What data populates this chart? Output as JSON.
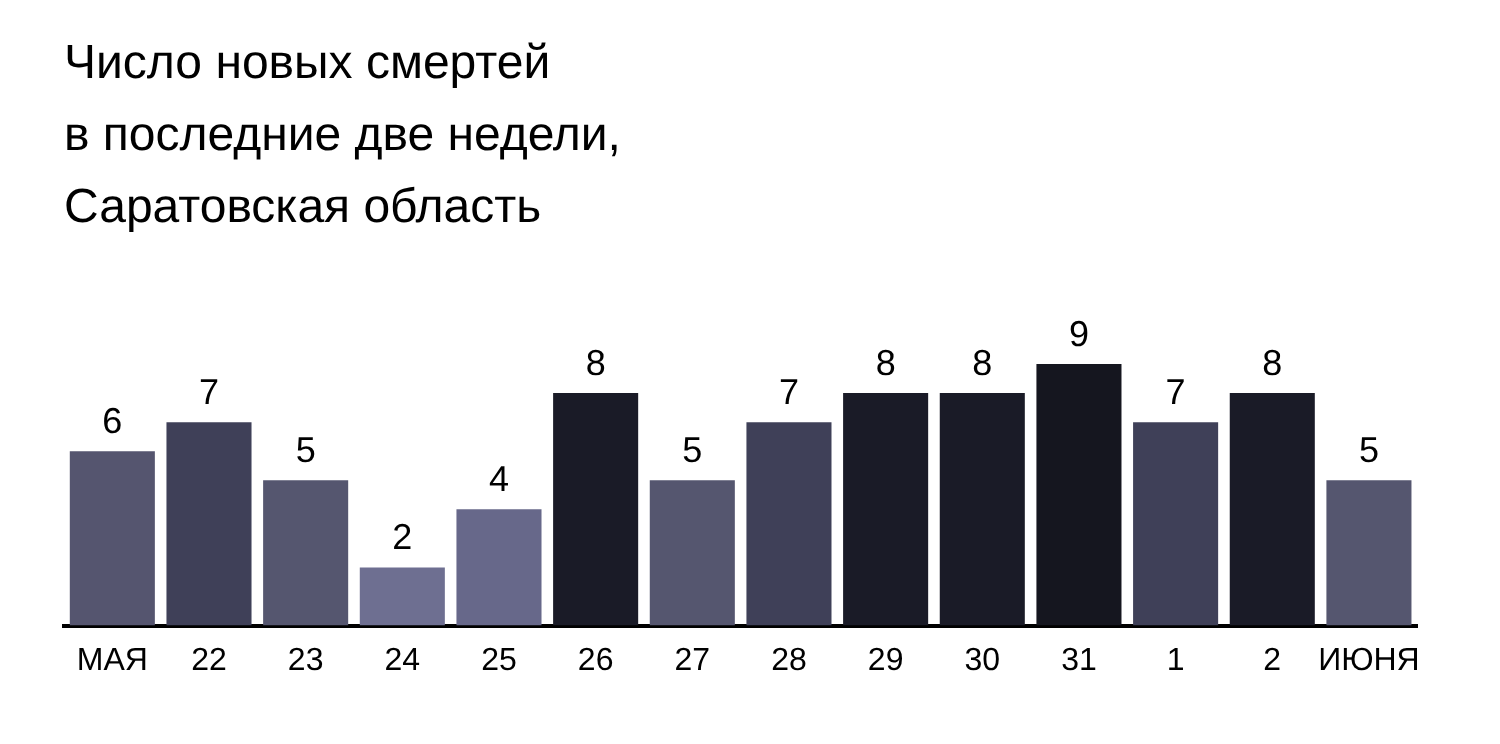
{
  "chart_data": {
    "type": "bar",
    "title": "Число новых смертей\nв последние две недели,\nСаратовская область",
    "categories": [
      "МАЯ",
      "22",
      "23",
      "24",
      "25",
      "26",
      "27",
      "28",
      "29",
      "30",
      "31",
      "1",
      "2",
      "ИЮНЯ"
    ],
    "values": [
      6,
      7,
      5,
      2,
      4,
      8,
      5,
      7,
      8,
      8,
      9,
      7,
      8,
      5
    ],
    "colors": [
      "#55556f",
      "#3f4058",
      "#55566f",
      "#6e6f91",
      "#67688a",
      "#1a1b27",
      "#55566f",
      "#3f4058",
      "#1a1b27",
      "#1a1b27",
      "#15161f",
      "#3f4058",
      "#1a1b27",
      "#55566f"
    ],
    "data_labels": true,
    "grid": false,
    "legend": false
  }
}
